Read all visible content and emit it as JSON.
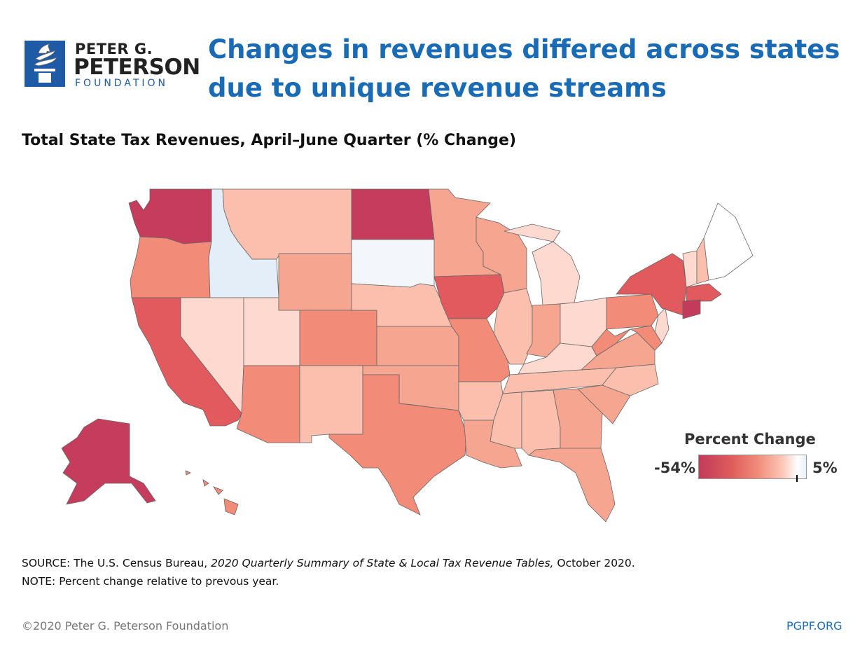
{
  "logo": {
    "line1": "PETER G.",
    "line2": "PETERSON",
    "line3": "FOUNDATION"
  },
  "headline": "Changes in revenues differed across states due to unique revenue streams",
  "subtitle": "Total State Tax Revenues, April–June Quarter (% Change)",
  "legend": {
    "title": "Percent Change",
    "min_label": "-54%",
    "max_label": "5%",
    "min": -54,
    "max": 5
  },
  "source": {
    "prefix": "SOURCE: The U.S. Census Bureau, ",
    "title": "2020 Quarterly Summary of State & Local Tax Revenue Tables,",
    "suffix": " October 2020."
  },
  "note": "NOTE: Percent change relative to prevous year.",
  "footer": {
    "copyright": "©2020 Peter G. Peterson Foundation",
    "site": "PGPF.ORG"
  },
  "colors": {
    "dark": "#c53c5c",
    "red": "#e05a5e",
    "salmon": "#f28c78",
    "mid": "#f6a690",
    "light": "#fbbfae",
    "pale": "#fdd9d0",
    "near_white": "#fbf0ee",
    "blue_pale": "#e4eef9",
    "white_blue": "#f3f7fc",
    "title_blue": "#1a6bb5",
    "logo_blue": "#1f5aa6"
  }
}
